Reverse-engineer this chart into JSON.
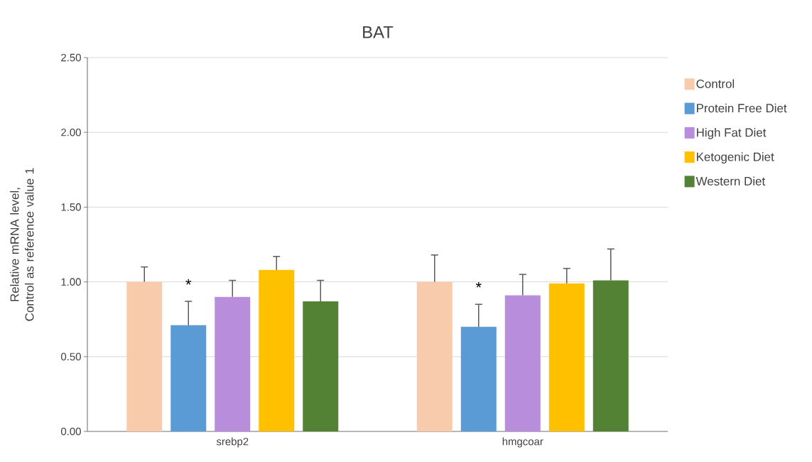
{
  "chart_data": {
    "type": "bar",
    "title": "BAT",
    "ylabel": "Relative mRNA level, Control as reference value 1",
    "categories": [
      "srebp2",
      "hmgcoar"
    ],
    "series": [
      {
        "name": "Control",
        "color": "#f8cbad",
        "values": [
          1.0,
          1.0
        ],
        "errors": [
          [
            1.0,
            1.1
          ],
          [
            1.0,
            1.18
          ]
        ]
      },
      {
        "name": "Protein Free Diet",
        "color": "#5b9bd5",
        "values": [
          0.71,
          0.7
        ],
        "errors": [
          [
            0.71,
            0.87
          ],
          [
            0.7,
            0.85
          ]
        ]
      },
      {
        "name": "High Fat Diet",
        "color": "#b88ddb",
        "values": [
          0.9,
          0.91
        ],
        "errors": [
          [
            0.9,
            1.01
          ],
          [
            0.91,
            1.05
          ]
        ]
      },
      {
        "name": "Ketogenic Diet",
        "color": "#ffc000",
        "values": [
          1.08,
          0.99
        ],
        "errors": [
          [
            1.08,
            1.17
          ],
          [
            0.99,
            1.09
          ]
        ]
      },
      {
        "name": "Western Diet",
        "color": "#548235",
        "values": [
          0.87,
          1.01
        ],
        "errors": [
          [
            0.87,
            1.01
          ],
          [
            1.01,
            1.22
          ]
        ]
      }
    ],
    "ylim": [
      0,
      2.5
    ],
    "yticks": [
      {
        "value": 0,
        "label": "0.00"
      },
      {
        "value": 0.5,
        "label": "0.50"
      },
      {
        "value": 1,
        "label": "1.00"
      },
      {
        "value": 1.5,
        "label": "1.50"
      },
      {
        "value": 2,
        "label": "2.00"
      },
      {
        "value": 2.5,
        "label": "2.50"
      }
    ],
    "grid": "y",
    "legend": "right",
    "annotations": [
      {
        "text": "*",
        "x": "srebp2",
        "y": 0.93
      },
      {
        "text": "*",
        "x": "hmgcoar",
        "y": 0.91
      }
    ]
  }
}
